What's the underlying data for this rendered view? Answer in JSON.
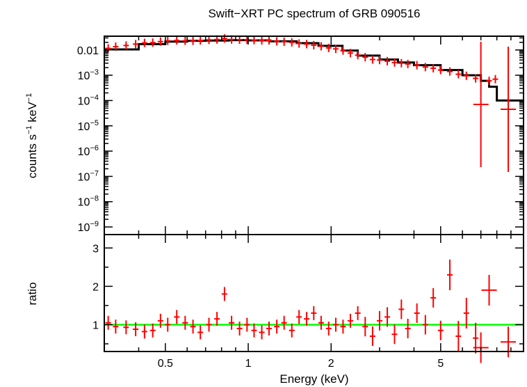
{
  "chart_data": [
    {
      "type": "scatter",
      "panel": "spectrum",
      "title": "Swift−XRT PC spectrum of GRB 090516",
      "ylabel_parts": {
        "pre": "counts s",
        "exp1": "−1",
        "mid": " keV",
        "exp2": "−1"
      },
      "xscale": "log",
      "yscale": "log",
      "xlim": [
        0.3,
        10
      ],
      "ylim": [
        5e-10,
        0.035
      ],
      "y_ticks": [
        {
          "value": 0.01,
          "label": "0.01",
          "base": "",
          "exp": ""
        },
        {
          "value": 0.001,
          "label": "",
          "base": "10",
          "exp": "−3"
        },
        {
          "value": 0.0001,
          "label": "",
          "base": "10",
          "exp": "−4"
        },
        {
          "value": 1e-05,
          "label": "",
          "base": "10",
          "exp": "−5"
        },
        {
          "value": 1e-06,
          "label": "",
          "base": "10",
          "exp": "−6"
        },
        {
          "value": 1e-07,
          "label": "",
          "base": "10",
          "exp": "−7"
        },
        {
          "value": 1e-08,
          "label": "",
          "base": "10",
          "exp": "−8"
        },
        {
          "value": 1e-09,
          "label": "",
          "base": "10",
          "exp": "−9"
        }
      ],
      "series": [
        {
          "kind": "data",
          "color": "#ff0000",
          "points": [
            {
              "x": 0.31,
              "y": 0.0115
            },
            {
              "x": 0.33,
              "y": 0.0135
            },
            {
              "x": 0.36,
              "y": 0.015
            },
            {
              "x": 0.39,
              "y": 0.017
            },
            {
              "x": 0.42,
              "y": 0.019
            },
            {
              "x": 0.45,
              "y": 0.0195
            },
            {
              "x": 0.48,
              "y": 0.0215
            },
            {
              "x": 0.51,
              "y": 0.023
            },
            {
              "x": 0.55,
              "y": 0.024
            },
            {
              "x": 0.59,
              "y": 0.023
            },
            {
              "x": 0.63,
              "y": 0.023
            },
            {
              "x": 0.67,
              "y": 0.024
            },
            {
              "x": 0.72,
              "y": 0.025
            },
            {
              "x": 0.77,
              "y": 0.026
            },
            {
              "x": 0.82,
              "y": 0.0285
            },
            {
              "x": 0.87,
              "y": 0.026
            },
            {
              "x": 0.93,
              "y": 0.0255
            },
            {
              "x": 0.99,
              "y": 0.025
            },
            {
              "x": 1.05,
              "y": 0.0245
            },
            {
              "x": 1.12,
              "y": 0.024
            },
            {
              "x": 1.19,
              "y": 0.024
            },
            {
              "x": 1.27,
              "y": 0.022
            },
            {
              "x": 1.35,
              "y": 0.021
            },
            {
              "x": 1.44,
              "y": 0.02
            },
            {
              "x": 1.53,
              "y": 0.018
            },
            {
              "x": 1.63,
              "y": 0.017
            },
            {
              "x": 1.73,
              "y": 0.0155
            },
            {
              "x": 1.84,
              "y": 0.014
            },
            {
              "x": 1.96,
              "y": 0.012
            },
            {
              "x": 2.08,
              "y": 0.011
            },
            {
              "x": 2.21,
              "y": 0.0095
            },
            {
              "x": 2.35,
              "y": 0.0075
            },
            {
              "x": 2.5,
              "y": 0.0062
            },
            {
              "x": 2.66,
              "y": 0.0052
            },
            {
              "x": 2.83,
              "y": 0.0042
            },
            {
              "x": 3.0,
              "y": 0.004
            },
            {
              "x": 3.2,
              "y": 0.0036
            },
            {
              "x": 3.4,
              "y": 0.0032
            },
            {
              "x": 3.6,
              "y": 0.003
            },
            {
              "x": 3.8,
              "y": 0.0028
            },
            {
              "x": 4.1,
              "y": 0.0025
            },
            {
              "x": 4.4,
              "y": 0.0021
            },
            {
              "x": 4.7,
              "y": 0.0019
            },
            {
              "x": 5.0,
              "y": 0.0016
            },
            {
              "x": 5.4,
              "y": 0.0014
            },
            {
              "x": 5.8,
              "y": 0.0011
            },
            {
              "x": 6.2,
              "y": 0.00095
            },
            {
              "x": 6.7,
              "y": 0.00075
            },
            {
              "x": 7.5,
              "y": 0.0006
            },
            {
              "x": 7.9,
              "y": 0.0007
            },
            {
              "x": 7.0,
              "y": 7e-05
            },
            {
              "x": 8.8,
              "y": 4.5e-05
            }
          ]
        },
        {
          "kind": "model",
          "color": "#000000",
          "points": [
            {
              "x": 0.3,
              "y": 0.0105
            },
            {
              "x": 0.4,
              "y": 0.017
            },
            {
              "x": 0.5,
              "y": 0.0215
            },
            {
              "x": 0.6,
              "y": 0.023
            },
            {
              "x": 0.7,
              "y": 0.0235
            },
            {
              "x": 0.85,
              "y": 0.0245
            },
            {
              "x": 1.0,
              "y": 0.024
            },
            {
              "x": 1.2,
              "y": 0.022
            },
            {
              "x": 1.5,
              "y": 0.0185
            },
            {
              "x": 1.8,
              "y": 0.0145
            },
            {
              "x": 2.2,
              "y": 0.0095
            },
            {
              "x": 2.5,
              "y": 0.006
            },
            {
              "x": 3.0,
              "y": 0.0042
            },
            {
              "x": 3.5,
              "y": 0.0032
            },
            {
              "x": 4.0,
              "y": 0.0025
            },
            {
              "x": 5.0,
              "y": 0.0016
            },
            {
              "x": 6.0,
              "y": 0.001
            },
            {
              "x": 7.0,
              "y": 0.0006
            },
            {
              "x": 7.5,
              "y": 0.00035
            },
            {
              "x": 8.0,
              "y": 0.0001
            },
            {
              "x": 10.0,
              "y": 0.0001
            }
          ]
        }
      ]
    },
    {
      "type": "scatter",
      "panel": "ratio",
      "ylabel": "ratio",
      "xlabel": "Energy (keV)",
      "xscale": "log",
      "xlim": [
        0.3,
        10
      ],
      "ylim": [
        0.3,
        3.35
      ],
      "x_ticks": [
        {
          "value": 0.5,
          "label": "0.5"
        },
        {
          "value": 1,
          "label": "1"
        },
        {
          "value": 2,
          "label": "2"
        },
        {
          "value": 5,
          "label": "5"
        }
      ],
      "y_ticks": [
        {
          "value": 1,
          "label": "1"
        },
        {
          "value": 2,
          "label": "2"
        },
        {
          "value": 3,
          "label": "3"
        }
      ],
      "reference_line": {
        "y": 1,
        "color": "#00ff00"
      },
      "series": [
        {
          "kind": "data",
          "color": "#ff0000",
          "points": [
            {
              "x": 0.31,
              "y": 1.05
            },
            {
              "x": 0.33,
              "y": 0.95
            },
            {
              "x": 0.36,
              "y": 0.93
            },
            {
              "x": 0.39,
              "y": 0.88
            },
            {
              "x": 0.42,
              "y": 0.82
            },
            {
              "x": 0.45,
              "y": 0.85
            },
            {
              "x": 0.48,
              "y": 1.1
            },
            {
              "x": 0.51,
              "y": 1.0
            },
            {
              "x": 0.55,
              "y": 1.2
            },
            {
              "x": 0.59,
              "y": 1.05
            },
            {
              "x": 0.63,
              "y": 0.95
            },
            {
              "x": 0.67,
              "y": 0.8
            },
            {
              "x": 0.72,
              "y": 1.0
            },
            {
              "x": 0.77,
              "y": 1.15
            },
            {
              "x": 0.82,
              "y": 1.8
            },
            {
              "x": 0.87,
              "y": 1.05
            },
            {
              "x": 0.93,
              "y": 0.9
            },
            {
              "x": 0.99,
              "y": 1.0
            },
            {
              "x": 1.05,
              "y": 0.85
            },
            {
              "x": 1.12,
              "y": 0.8
            },
            {
              "x": 1.19,
              "y": 0.9
            },
            {
              "x": 1.27,
              "y": 0.95
            },
            {
              "x": 1.35,
              "y": 1.05
            },
            {
              "x": 1.44,
              "y": 0.85
            },
            {
              "x": 1.53,
              "y": 1.2
            },
            {
              "x": 1.63,
              "y": 1.15
            },
            {
              "x": 1.73,
              "y": 1.3
            },
            {
              "x": 1.84,
              "y": 1.05
            },
            {
              "x": 1.96,
              "y": 0.9
            },
            {
              "x": 2.08,
              "y": 1.0
            },
            {
              "x": 2.21,
              "y": 0.95
            },
            {
              "x": 2.35,
              "y": 1.1
            },
            {
              "x": 2.5,
              "y": 1.3
            },
            {
              "x": 2.66,
              "y": 0.95
            },
            {
              "x": 2.83,
              "y": 0.7
            },
            {
              "x": 3.0,
              "y": 1.1
            },
            {
              "x": 3.2,
              "y": 1.2
            },
            {
              "x": 3.4,
              "y": 0.75
            },
            {
              "x": 3.6,
              "y": 1.4
            },
            {
              "x": 3.8,
              "y": 0.9
            },
            {
              "x": 4.1,
              "y": 1.3
            },
            {
              "x": 4.4,
              "y": 1.0
            },
            {
              "x": 4.7,
              "y": 1.7
            },
            {
              "x": 5.0,
              "y": 0.85
            },
            {
              "x": 5.4,
              "y": 2.3
            },
            {
              "x": 5.8,
              "y": 0.7
            },
            {
              "x": 6.2,
              "y": 1.3
            },
            {
              "x": 6.7,
              "y": 0.65
            },
            {
              "x": 7.0,
              "y": 0.4
            },
            {
              "x": 7.5,
              "y": 1.9
            },
            {
              "x": 8.8,
              "y": 0.55
            }
          ]
        }
      ]
    }
  ]
}
